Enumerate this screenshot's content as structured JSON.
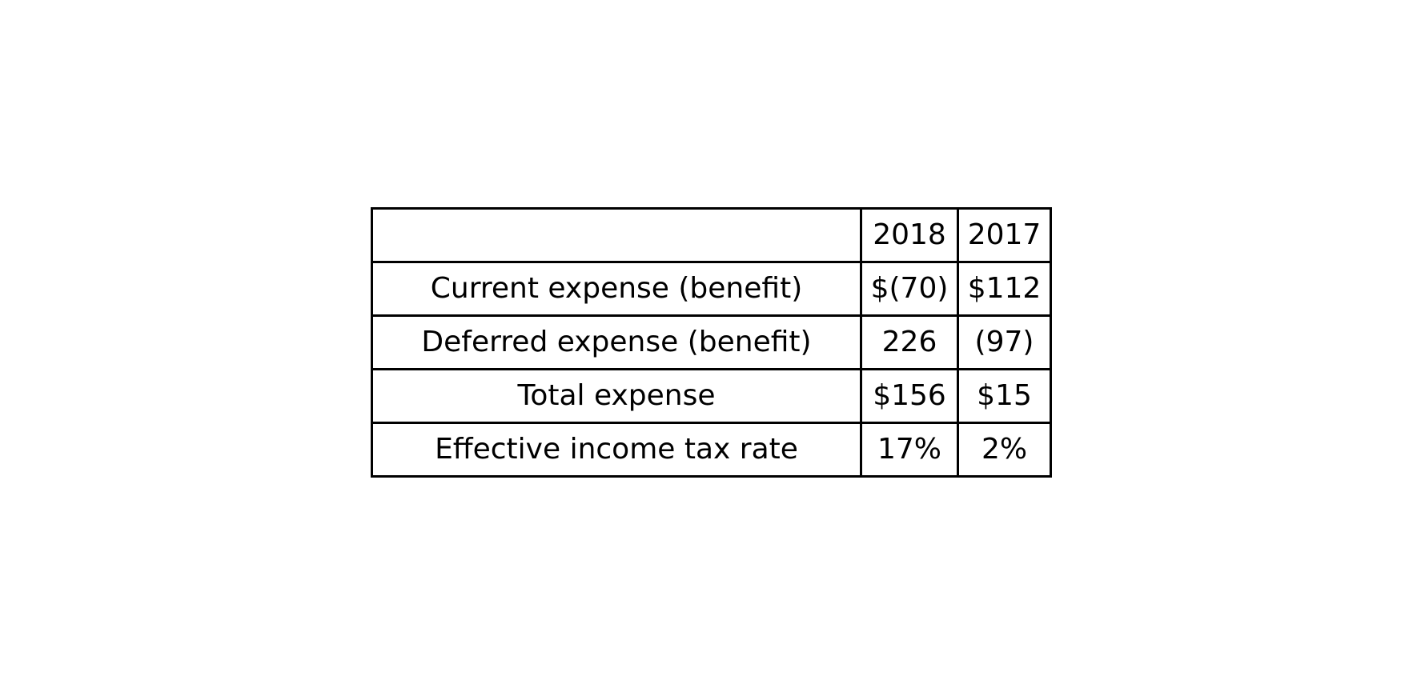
{
  "chart_data": {
    "type": "table",
    "columns": [
      "",
      "2018",
      "2017"
    ],
    "rows": [
      {
        "label": "Current expense (benefit)",
        "values": [
          "$(70)",
          "$112"
        ]
      },
      {
        "label": "Deferred expense (benefit)",
        "values": [
          "226",
          "(97)"
        ]
      },
      {
        "label": "Total expense",
        "values": [
          "$156",
          "$15"
        ]
      },
      {
        "label": "Effective income tax rate",
        "values": [
          "17%",
          "2%"
        ]
      }
    ]
  },
  "colors": {
    "border": "#000000",
    "text": "#000000",
    "background": "#ffffff"
  }
}
